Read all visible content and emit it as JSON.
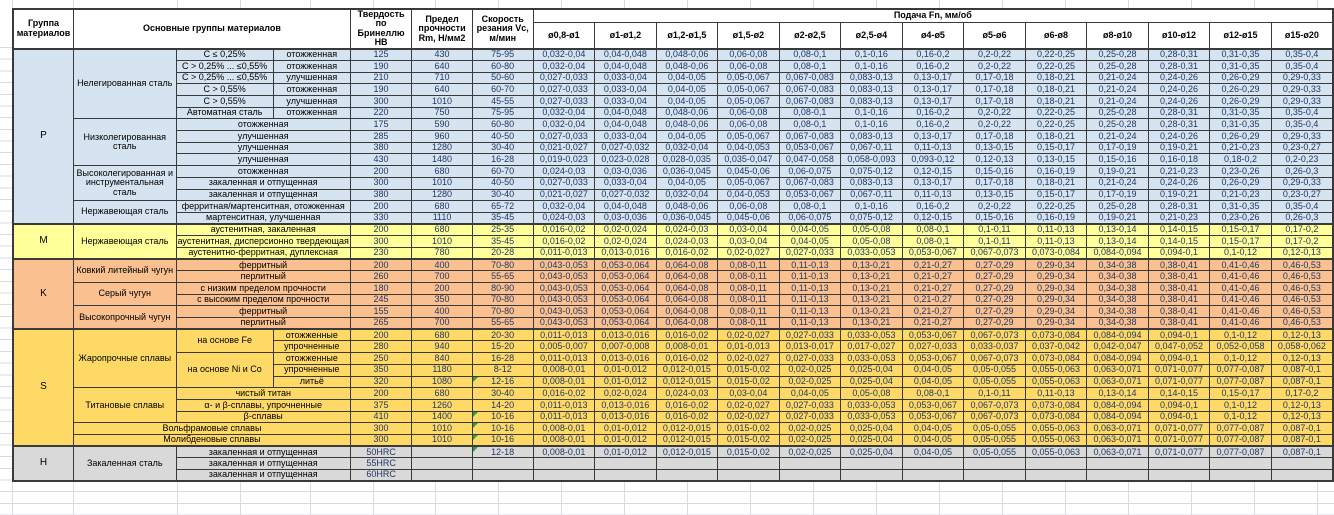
{
  "header": {
    "col_group": "Группа материалов",
    "col_main_groups": "Основные группы материалов",
    "col_hardness": "Твердость по Бринеллю HB",
    "col_strength": "Предел прочности Rm, Н/мм2",
    "col_speed": "Скорость резания Vc, м/мин",
    "col_feed": "Подача Fn, мм/об",
    "diameters": [
      "ø0,8-ø1",
      "ø1-ø1,2",
      "ø1,2-ø1,5",
      "ø1,5-ø2",
      "ø2-ø2,5",
      "ø2,5-ø4",
      "ø4-ø5",
      "ø5-ø6",
      "ø6-ø8",
      "ø8-ø10",
      "ø10-ø12",
      "ø12-ø15",
      "ø15-ø20"
    ]
  },
  "colors": {
    "P": "#d6e4f1",
    "M": "#ffff99",
    "K": "#fac090",
    "S": "#ffd966",
    "H": "#d9d9d9",
    "note_marker": "#2f9e44",
    "border": "#3a3a3a",
    "gridline": "#d7dce2",
    "numeric_text": "#1f3864"
  },
  "feed_patterns": {
    "A": [
      "0,032-0,04",
      "0,04-0,048",
      "0,048-0,06",
      "0,06-0,08",
      "0,08-0,1",
      "0,1-0,16",
      "0,16-0,2",
      "0,2-0,22",
      "0,22-0,25",
      "0,25-0,28",
      "0,28-0,31",
      "0,31-0,35",
      "0,35-0,4"
    ],
    "B": [
      "0,027-0,033",
      "0,033-0,04",
      "0,04-0,05",
      "0,05-0,067",
      "0,067-0,083",
      "0,083-0,13",
      "0,13-0,17",
      "0,17-0,18",
      "0,18-0,21",
      "0,21-0,24",
      "0,24-0,26",
      "0,26-0,29",
      "0,29-0,33"
    ],
    "C": [
      "0,021-0,027",
      "0,027-0,032",
      "0,032-0,04",
      "0,04-0,053",
      "0,053-0,067",
      "0,067-0,11",
      "0,11-0,13",
      "0,13-0,15",
      "0,15-0,17",
      "0,17-0,19",
      "0,19-0,21",
      "0,21-0,23",
      "0,23-0,27"
    ],
    "D": [
      "0,024-0,03",
      "0,03-0,036",
      "0,036-0,045",
      "0,045-0,06",
      "0,06-0,075",
      "0,075-0,12",
      "0,12-0,15",
      "0,15-0,16",
      "0,16-0,19",
      "0,19-0,21",
      "0,21-0,23",
      "0,23-0,26",
      "0,26-0,3"
    ],
    "E": [
      "0,019-0,023",
      "0,023-0,028",
      "0,028-0,035",
      "0,035-0,047",
      "0,047-0,058",
      "0,058-0,093",
      "0,093-0,12",
      "0,12-0,13",
      "0,13-0,15",
      "0,15-0,16",
      "0,16-0,18",
      "0,18-0,2",
      "0,2-0,23"
    ],
    "F": [
      "0,016-0,02",
      "0,02-0,024",
      "0,024-0,03",
      "0,03-0,04",
      "0,04-0,05",
      "0,05-0,08",
      "0,08-0,1",
      "0,1-0,11",
      "0,11-0,13",
      "0,13-0,14",
      "0,14-0,15",
      "0,15-0,17",
      "0,17-0,2"
    ],
    "G": [
      "0,011-0,013",
      "0,013-0,016",
      "0,016-0,02",
      "0,02-0,027",
      "0,027-0,033",
      "0,033-0,053",
      "0,053-0,067",
      "0,067-0,073",
      "0,073-0,084",
      "0,084-0,094",
      "0,094-0,1",
      "0,1-0,12",
      "0,12-0,13"
    ],
    "H": [
      "0,043-0,053",
      "0,053-0,064",
      "0,064-0,08",
      "0,08-0,11",
      "0,11-0,13",
      "0,13-0,21",
      "0,21-0,27",
      "0,27-0,29",
      "0,29-0,34",
      "0,34-0,38",
      "0,38-0,41",
      "0,41-0,46",
      "0,46-0,53"
    ],
    "I": [
      "0,005-0,007",
      "0,007-0,008",
      "0,008-0,01",
      "0,01-0,013",
      "0,013-0,017",
      "0,017-0,027",
      "0,027-0,033",
      "0,033-0,037",
      "0,037-0,042",
      "0,042-0,047",
      "0,047-0,052",
      "0,052-0,058",
      "0,058-0,062"
    ],
    "J": [
      "0,008-0,01",
      "0,01-0,012",
      "0,012-0,015",
      "0,015-0,02",
      "0,02-0,025",
      "0,025-0,04",
      "0,04-0,05",
      "0,05-0,055",
      "0,055-0,063",
      "0,063-0,071",
      "0,071-0,077",
      "0,077-0,087",
      "0,087-0,1"
    ]
  },
  "groups": [
    {
      "id": "P",
      "sections": [
        {
          "name": "Нелегированная сталь",
          "has_sub": true,
          "rows": [
            {
              "sub": "C ≤ 0,25%",
              "cond": "отожженная",
              "hb": "125",
              "rm": "430",
              "vc": "75-95",
              "f": "A"
            },
            {
              "sub": "C > 0,25% ... ≤0,55%",
              "cond": "отожженная",
              "hb": "190",
              "rm": "640",
              "vc": "60-80",
              "f": "A"
            },
            {
              "sub": "C > 0,25% ... ≤0,55%",
              "cond": "улучшенная",
              "hb": "210",
              "rm": "710",
              "vc": "50-60",
              "f": "B"
            },
            {
              "sub": "C > 0,55%",
              "cond": "отожженная",
              "hb": "190",
              "rm": "640",
              "vc": "60-70",
              "f": "B"
            },
            {
              "sub": "C > 0,55%",
              "cond": "улучшенная",
              "hb": "300",
              "rm": "1010",
              "vc": "45-55",
              "f": "B"
            },
            {
              "sub": "Автоматная сталь",
              "cond": "отожженная",
              "hb": "220",
              "rm": "750",
              "vc": "75-95",
              "f": "A"
            }
          ]
        },
        {
          "name": "Низколегированная сталь",
          "rows": [
            {
              "cond": "отожженная",
              "hb": "175",
              "rm": "590",
              "vc": "60-80",
              "f": "A"
            },
            {
              "cond": "улучшенная",
              "hb": "285",
              "rm": "960",
              "vc": "40-50",
              "f": "B"
            },
            {
              "cond": "улучшенная",
              "hb": "380",
              "rm": "1280",
              "vc": "30-40",
              "f": "C"
            },
            {
              "cond": "улучшенная",
              "hb": "430",
              "rm": "1480",
              "vc": "16-28",
              "f": "E"
            }
          ]
        },
        {
          "name": "Высоколегированная и инструментальная сталь",
          "rows": [
            {
              "cond": "отожженная",
              "hb": "200",
              "rm": "680",
              "vc": "60-70",
              "f": "D"
            },
            {
              "cond": "закаленная и отпущенная",
              "hb": "300",
              "rm": "1010",
              "vc": "40-50",
              "f": "B"
            },
            {
              "cond": "закаленная и отпущенная",
              "hb": "380",
              "rm": "1280",
              "vc": "30-40",
              "f": "C"
            }
          ]
        },
        {
          "name": "Нержавеющая сталь",
          "rows": [
            {
              "cond": "ферритная/мартенситная, отожженная",
              "hb": "200",
              "rm": "680",
              "vc": "65-72",
              "f": "A"
            },
            {
              "cond": "мартенситная, улучшенная",
              "hb": "330",
              "rm": "1110",
              "vc": "35-45",
              "f": "D"
            }
          ]
        }
      ]
    },
    {
      "id": "M",
      "sections": [
        {
          "name": "Нержавеющая сталь",
          "rows": [
            {
              "cond": "аустенитная, закаленная",
              "hb": "200",
              "rm": "680",
              "vc": "25-35",
              "f": "F"
            },
            {
              "cond": "аустенитная, дисперсионно твердеющая",
              "hb": "300",
              "rm": "1010",
              "vc": "35-45",
              "f": "F"
            },
            {
              "cond": "аустенитно-ферритная, дуплексная",
              "hb": "230",
              "rm": "780",
              "vc": "20-28",
              "f": "G"
            }
          ]
        }
      ]
    },
    {
      "id": "K",
      "sections": [
        {
          "name": "Ковкий литейный чугун",
          "rows": [
            {
              "cond": "ферритный",
              "hb": "200",
              "rm": "400",
              "vc": "70-80",
              "f": "H"
            },
            {
              "cond": "перлитный",
              "hb": "260",
              "rm": "700",
              "vc": "55-65",
              "f": "H"
            }
          ]
        },
        {
          "name": "Серый чугун",
          "rows": [
            {
              "cond": "с низким пределом прочности",
              "hb": "180",
              "rm": "200",
              "vc": "80-90",
              "f": "H"
            },
            {
              "cond": "с высоким пределом прочности",
              "hb": "245",
              "rm": "350",
              "vc": "70-80",
              "f": "H"
            }
          ]
        },
        {
          "name": "Высокопрочный чугун",
          "rows": [
            {
              "cond": "ферритный",
              "hb": "155",
              "rm": "400",
              "vc": "70-80",
              "f": "H"
            },
            {
              "cond": "перлитный",
              "hb": "265",
              "rm": "700",
              "vc": "55-65",
              "f": "H"
            }
          ]
        }
      ]
    },
    {
      "id": "S",
      "sections": [
        {
          "name": "Жаропрочные сплавы",
          "has_sub": true,
          "rows": [
            {
              "sub": "на основе Fe",
              "subspan": 2,
              "cond": "отожженные",
              "hb": "200",
              "rm": "680",
              "vc": "20-30",
              "f": "G"
            },
            {
              "cond": "упрочненные",
              "hb": "280",
              "rm": "940",
              "vc": "15-20",
              "f": "I"
            },
            {
              "sub": "на основе Ni и Co",
              "subspan": 3,
              "cond": "отожженные",
              "hb": "250",
              "rm": "840",
              "vc": "16-28",
              "f": "G"
            },
            {
              "cond": "упрочненные",
              "hb": "350",
              "rm": "1180",
              "vc": "8-12",
              "f": "J"
            },
            {
              "cond": "литьё",
              "hb": "320",
              "rm": "1080",
              "vc": "12-16",
              "f": "J",
              "note": true
            }
          ]
        },
        {
          "name": "Титановые сплавы",
          "rows": [
            {
              "cond": "чистый титан",
              "hb": "200",
              "rm": "680",
              "vc": "30-40",
              "f": "F"
            },
            {
              "cond": "α- и β-сплавы, упрочненные",
              "hb": "375",
              "rm": "1260",
              "vc": "14-20",
              "f": "G"
            },
            {
              "cond": "β-сплавы",
              "hb": "410",
              "rm": "1400",
              "vc": "10-16",
              "f": "G",
              "note": true
            }
          ]
        },
        {
          "name": "Вольфрамовые сплавы",
          "merge_name": true,
          "rows": [
            {
              "hb": "300",
              "rm": "1010",
              "vc": "10-16",
              "f": "J",
              "note": true
            }
          ]
        },
        {
          "name": "Молибденовые сплавы",
          "merge_name": true,
          "rows": [
            {
              "hb": "300",
              "rm": "1010",
              "vc": "10-16",
              "f": "J",
              "note": true
            }
          ]
        }
      ]
    },
    {
      "id": "H",
      "sections": [
        {
          "name": "Закаленная сталь",
          "rows": [
            {
              "cond": "закаленная и отпущенная",
              "hb": "50HRC",
              "rm": "",
              "vc": "12-18",
              "f": "J",
              "note": true
            },
            {
              "cond": "закаленная и отпущенная",
              "hb": "55HRC",
              "rm": "",
              "vc": "",
              "f": null
            },
            {
              "cond": "закаленная и отпущенная",
              "hb": "60HRC",
              "rm": "",
              "vc": "",
              "f": null
            }
          ]
        }
      ]
    }
  ]
}
